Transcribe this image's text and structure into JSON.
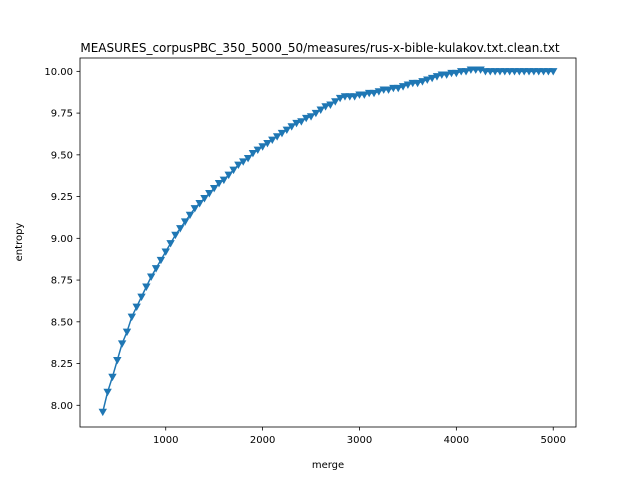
{
  "chart_data": {
    "type": "line",
    "title": "MEASURES_corpusPBC_350_5000_50/measures/rus-x-bible-kulakov.txt.clean.txt",
    "xlabel": "merge",
    "ylabel": "entropy",
    "xlim": [
      115,
      5235
    ],
    "ylim": [
      7.87,
      10.08
    ],
    "xticks": [
      1000,
      2000,
      3000,
      4000,
      5000
    ],
    "yticks": [
      8.0,
      8.25,
      8.5,
      8.75,
      9.0,
      9.25,
      9.5,
      9.75,
      10.0
    ],
    "marker": "triangle-down",
    "grid": false,
    "series": [
      {
        "name": "",
        "color": "#1f77b4",
        "x": [
          350,
          400,
          450,
          500,
          550,
          600,
          650,
          700,
          750,
          800,
          850,
          900,
          950,
          1000,
          1050,
          1100,
          1150,
          1200,
          1250,
          1300,
          1350,
          1400,
          1450,
          1500,
          1550,
          1600,
          1650,
          1700,
          1750,
          1800,
          1850,
          1900,
          1950,
          2000,
          2050,
          2100,
          2150,
          2200,
          2250,
          2300,
          2350,
          2400,
          2450,
          2500,
          2550,
          2600,
          2650,
          2700,
          2750,
          2800,
          2850,
          2900,
          2950,
          3000,
          3050,
          3100,
          3150,
          3200,
          3250,
          3300,
          3350,
          3400,
          3450,
          3500,
          3550,
          3600,
          3650,
          3700,
          3750,
          3800,
          3850,
          3900,
          3950,
          4000,
          4050,
          4100,
          4150,
          4200,
          4250,
          4300,
          4350,
          4400,
          4450,
          4500,
          4550,
          4600,
          4650,
          4700,
          4750,
          4800,
          4850,
          4900,
          4950,
          5000
        ],
        "y": [
          7.96,
          8.08,
          8.17,
          8.27,
          8.37,
          8.44,
          8.53,
          8.59,
          8.65,
          8.71,
          8.77,
          8.82,
          8.87,
          8.92,
          8.97,
          9.02,
          9.06,
          9.1,
          9.14,
          9.18,
          9.21,
          9.24,
          9.27,
          9.3,
          9.33,
          9.35,
          9.38,
          9.41,
          9.44,
          9.46,
          9.48,
          9.51,
          9.53,
          9.55,
          9.57,
          9.59,
          9.61,
          9.63,
          9.65,
          9.67,
          9.69,
          9.7,
          9.72,
          9.73,
          9.75,
          9.77,
          9.79,
          9.8,
          9.82,
          9.84,
          9.85,
          9.85,
          9.85,
          9.86,
          9.86,
          9.87,
          9.87,
          9.88,
          9.89,
          9.89,
          9.9,
          9.9,
          9.91,
          9.92,
          9.93,
          9.93,
          9.94,
          9.95,
          9.96,
          9.97,
          9.98,
          9.98,
          9.99,
          9.99,
          10.0,
          10.0,
          10.01,
          10.01,
          10.01,
          10.0,
          10.0,
          10.0,
          10.0,
          10.0,
          10.0,
          10.0,
          10.0,
          10.0,
          10.0,
          10.0,
          10.0,
          10.0,
          10.0,
          10.0
        ]
      }
    ]
  }
}
